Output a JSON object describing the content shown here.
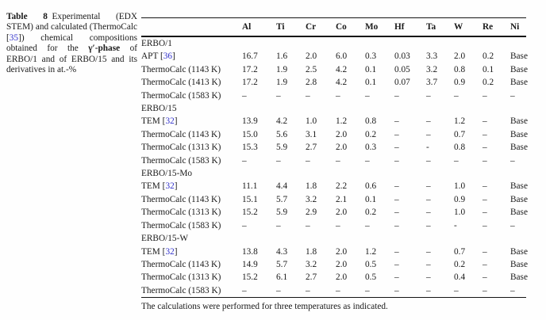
{
  "caption": {
    "segments": [
      {
        "text": "Table 8",
        "style": "boldlabel"
      },
      {
        "text": " Experimental (EDX STEM) and calculated (ThermoCalc [",
        "style": "normal"
      },
      {
        "text": "35",
        "style": "ref"
      },
      {
        "text": "]) chemical compositions obtained for the ",
        "style": "normal"
      },
      {
        "text": "γ′-phase",
        "style": "bold"
      },
      {
        "text": " of ERBO/1 and of ERBO/15 and its derivatives in at.-%",
        "style": "normal"
      }
    ]
  },
  "table": {
    "columns": [
      "Al",
      "Ti",
      "Cr",
      "Co",
      "Mo",
      "Hf",
      "Ta",
      "W",
      "Re",
      "Ni"
    ],
    "rows": [
      {
        "type": "group",
        "label": "ERBO/1"
      },
      {
        "type": "data",
        "label": "APT",
        "ref": "36",
        "values": [
          "16.7",
          "1.6",
          "2.0",
          "6.0",
          "0.3",
          "0.03",
          "3.3",
          "2.0",
          "0.2",
          "Base"
        ]
      },
      {
        "type": "data",
        "label": "ThermoCalc (1143 K)",
        "values": [
          "17.2",
          "1.9",
          "2.5",
          "4.2",
          "0.1",
          "0.05",
          "3.2",
          "0.8",
          "0.1",
          "Base"
        ]
      },
      {
        "type": "data",
        "label": "ThermoCalc (1413 K)",
        "values": [
          "17.2",
          "1.9",
          "2.8",
          "4.2",
          "0.1",
          "0.07",
          "3.7",
          "0.9",
          "0.2",
          "Base"
        ]
      },
      {
        "type": "data",
        "label": "ThermoCalc (1583 K)",
        "values": [
          "–",
          "–",
          "–",
          "–",
          "–",
          "–",
          "–",
          "–",
          "–",
          "–"
        ]
      },
      {
        "type": "group",
        "label": "ERBO/15"
      },
      {
        "type": "data",
        "label": "TEM",
        "ref": "32",
        "values": [
          "13.9",
          "4.2",
          "1.0",
          "1.2",
          "0.8",
          "–",
          "–",
          "1.2",
          "–",
          "Base"
        ]
      },
      {
        "type": "data",
        "label": "ThermoCalc (1143 K)",
        "values": [
          "15.0",
          "5.6",
          "3.1",
          "2.0",
          "0.2",
          "–",
          "–",
          "0.7",
          "–",
          "Base"
        ]
      },
      {
        "type": "data",
        "label": "ThermoCalc (1313 K)",
        "values": [
          "15.3",
          "5.9",
          "2.7",
          "2.0",
          "0.3",
          "–",
          "-",
          "0.8",
          "–",
          "Base"
        ]
      },
      {
        "type": "data",
        "label": "ThermoCalc (1583 K)",
        "values": [
          "–",
          "–",
          "–",
          "–",
          "–",
          "–",
          "–",
          "–",
          "–",
          "–"
        ]
      },
      {
        "type": "group",
        "label": "ERBO/15-Mo"
      },
      {
        "type": "data",
        "label": "TEM",
        "ref": "32",
        "values": [
          "11.1",
          "4.4",
          "1.8",
          "2.2",
          "0.6",
          "–",
          "–",
          "1.0",
          "–",
          "Base"
        ]
      },
      {
        "type": "data",
        "label": "ThermoCalc (1143 K)",
        "values": [
          "15.1",
          "5.7",
          "3.2",
          "2.1",
          "0.1",
          "–",
          "–",
          "0.9",
          "–",
          "Base"
        ]
      },
      {
        "type": "data",
        "label": "ThermoCalc (1313 K)",
        "values": [
          "15.2",
          "5.9",
          "2.9",
          "2.0",
          "0.2",
          "–",
          "–",
          "1.0",
          "–",
          "Base"
        ]
      },
      {
        "type": "data",
        "label": "ThermoCalc (1583 K)",
        "values": [
          "–",
          "–",
          "–",
          "–",
          "–",
          "–",
          "–",
          "-",
          "–",
          "–"
        ]
      },
      {
        "type": "group",
        "label": "ERBO/15-W"
      },
      {
        "type": "data",
        "label": "TEM",
        "ref": "32",
        "values": [
          "13.8",
          "4.3",
          "1.8",
          "2.0",
          "1.2",
          "–",
          "–",
          "0.7",
          "–",
          "Base"
        ]
      },
      {
        "type": "data",
        "label": "ThermoCalc (1143 K)",
        "values": [
          "14.9",
          "5.7",
          "3.2",
          "2.0",
          "0.5",
          "–",
          "–",
          "0.2",
          "–",
          "Base"
        ]
      },
      {
        "type": "data",
        "label": "ThermoCalc (1313 K)",
        "values": [
          "15.2",
          "6.1",
          "2.7",
          "2.0",
          "0.5",
          "–",
          "–",
          "0.4",
          "–",
          "Base"
        ]
      },
      {
        "type": "data",
        "label": "ThermoCalc (1583 K)",
        "values": [
          "–",
          "–",
          "–",
          "–",
          "–",
          "–",
          "–",
          "–",
          "–",
          "–"
        ]
      }
    ]
  },
  "footnote": "The calculations were performed for three temperatures as indicated.",
  "colors": {
    "reference_link": "#3333cc",
    "text": "#1a1a1a",
    "rule": "#151515",
    "background": "#fefefe"
  }
}
